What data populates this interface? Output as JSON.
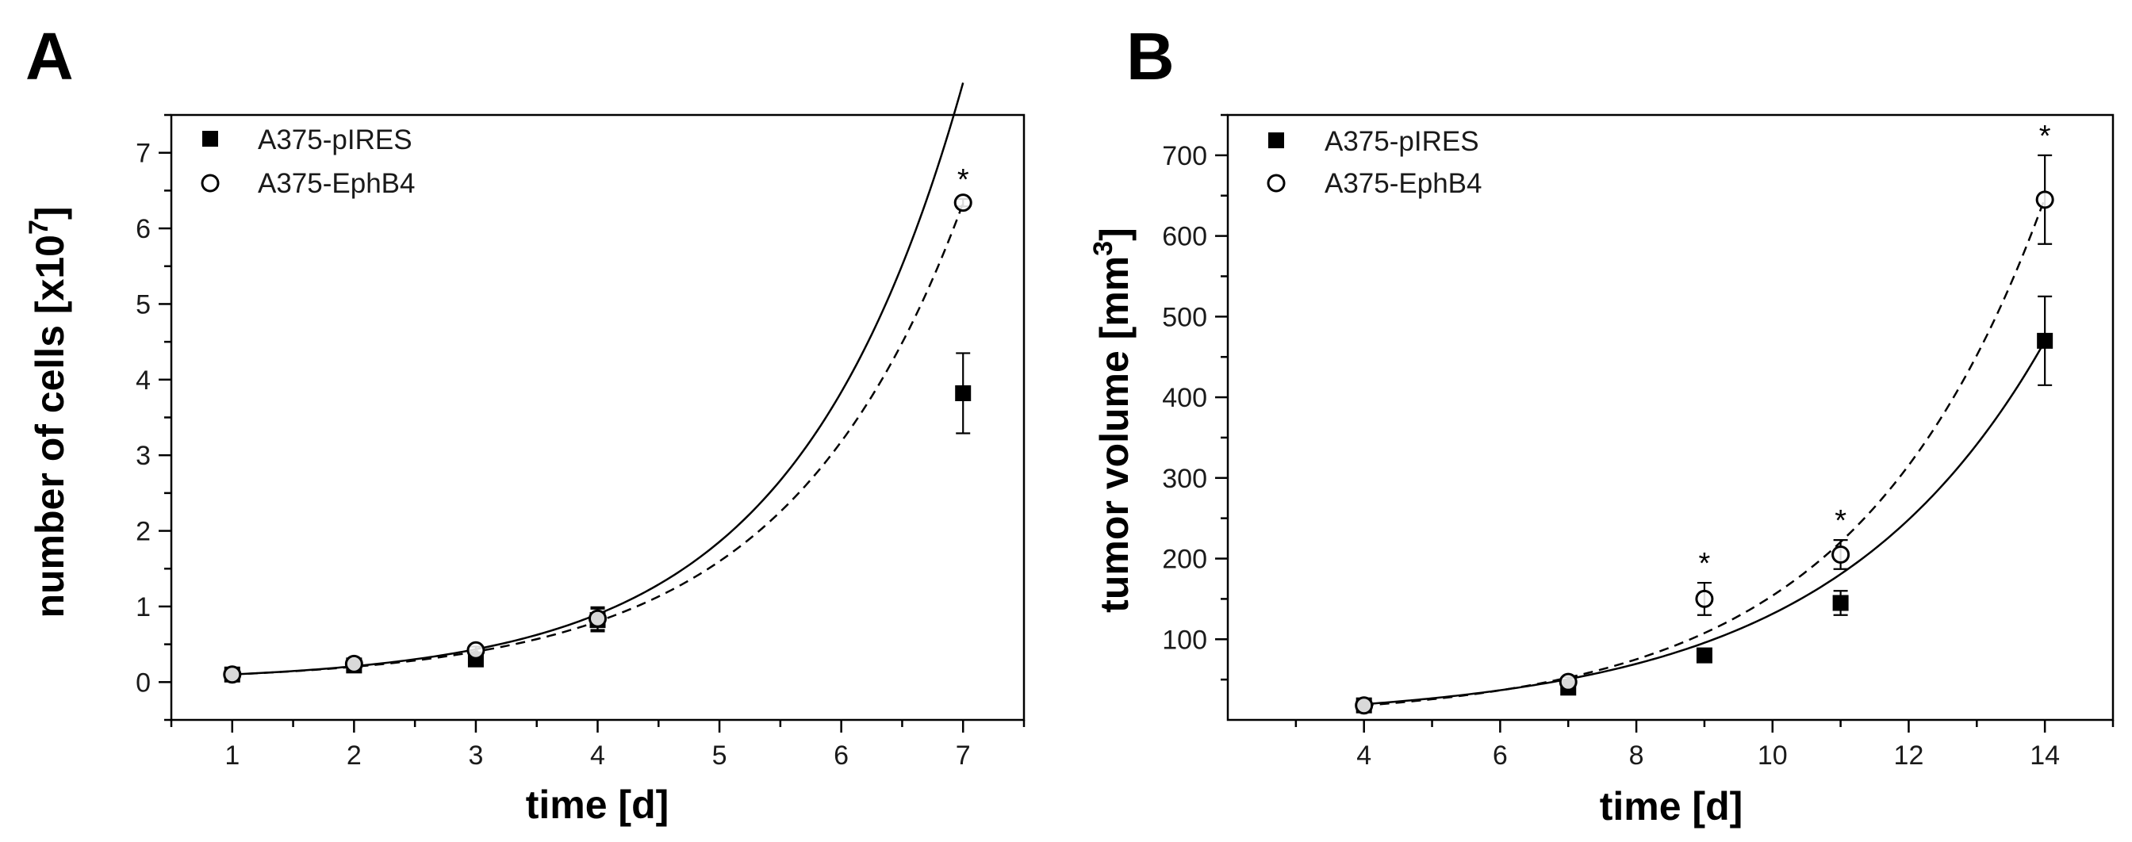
{
  "chart_data": [
    {
      "type": "scatter",
      "panel": "A",
      "xlabel": "time [d]",
      "ylabel_main": "number of cells [x10",
      "ylabel_sup": "7",
      "ylabel_end": "]",
      "xlim": [
        0.5,
        7.5
      ],
      "ylim": [
        -0.5,
        7.5
      ],
      "xticks": [
        1,
        2,
        3,
        4,
        5,
        6,
        7
      ],
      "yticks": [
        0,
        1,
        2,
        3,
        4,
        5,
        6,
        7
      ],
      "legend": [
        "A375-pIRES",
        "A375-EphB4"
      ],
      "legend_position": "top-left",
      "series": [
        {
          "name": "A375-pIRES",
          "marker": "filled-square",
          "x": [
            1,
            2,
            3,
            4,
            7
          ],
          "y": [
            0.1,
            0.22,
            0.3,
            0.82,
            3.82
          ],
          "err": [
            0.05,
            0.05,
            0.05,
            0.15,
            0.53
          ],
          "fit": {
            "style": "solid",
            "a": 0.0492,
            "b": 0.726
          }
        },
        {
          "name": "A375-EphB4",
          "marker": "open-circle",
          "x": [
            1,
            2,
            3,
            4,
            7
          ],
          "y": [
            0.1,
            0.24,
            0.42,
            0.84,
            6.34
          ],
          "err": [
            0.05,
            0.05,
            0.05,
            0.15,
            0.05
          ],
          "fit": {
            "style": "dashed",
            "a": 0.051,
            "b": 0.6888
          }
        }
      ],
      "annotations": [
        {
          "text": "*",
          "x": 7,
          "y": 6.34
        }
      ]
    },
    {
      "type": "scatter",
      "panel": "B",
      "xlabel": "time [d]",
      "ylabel_main": "tumor volume [mm",
      "ylabel_sup": "3",
      "ylabel_end": "]",
      "xlim": [
        2,
        15
      ],
      "ylim": [
        0,
        750
      ],
      "xticks": [
        4,
        6,
        8,
        10,
        12,
        14
      ],
      "yticks": [
        100,
        200,
        300,
        400,
        500,
        600,
        700
      ],
      "legend": [
        "A375-pIRES",
        "A375-EphB4"
      ],
      "legend_position": "top-left",
      "series": [
        {
          "name": "A375-pIRES",
          "marker": "filled-square",
          "x": [
            4,
            7,
            9,
            11,
            14
          ],
          "y": [
            18,
            40,
            80,
            145,
            470
          ],
          "err": [
            5,
            6,
            8,
            15,
            55
          ],
          "fit": {
            "style": "solid",
            "a": 5.45,
            "b": 0.3183
          }
        },
        {
          "name": "A375-EphB4",
          "marker": "open-circle",
          "x": [
            4,
            7,
            9,
            11,
            14
          ],
          "y": [
            18,
            47,
            150,
            205,
            645
          ],
          "err": [
            5,
            6,
            20,
            18,
            55
          ],
          "fit": {
            "style": "dashed",
            "a": 4.26,
            "b": 0.3588
          }
        }
      ],
      "annotations": [
        {
          "text": "*",
          "x": 9,
          "y": 150
        },
        {
          "text": "*",
          "x": 11,
          "y": 205
        },
        {
          "text": "*",
          "x": 14,
          "y": 645
        }
      ]
    }
  ]
}
